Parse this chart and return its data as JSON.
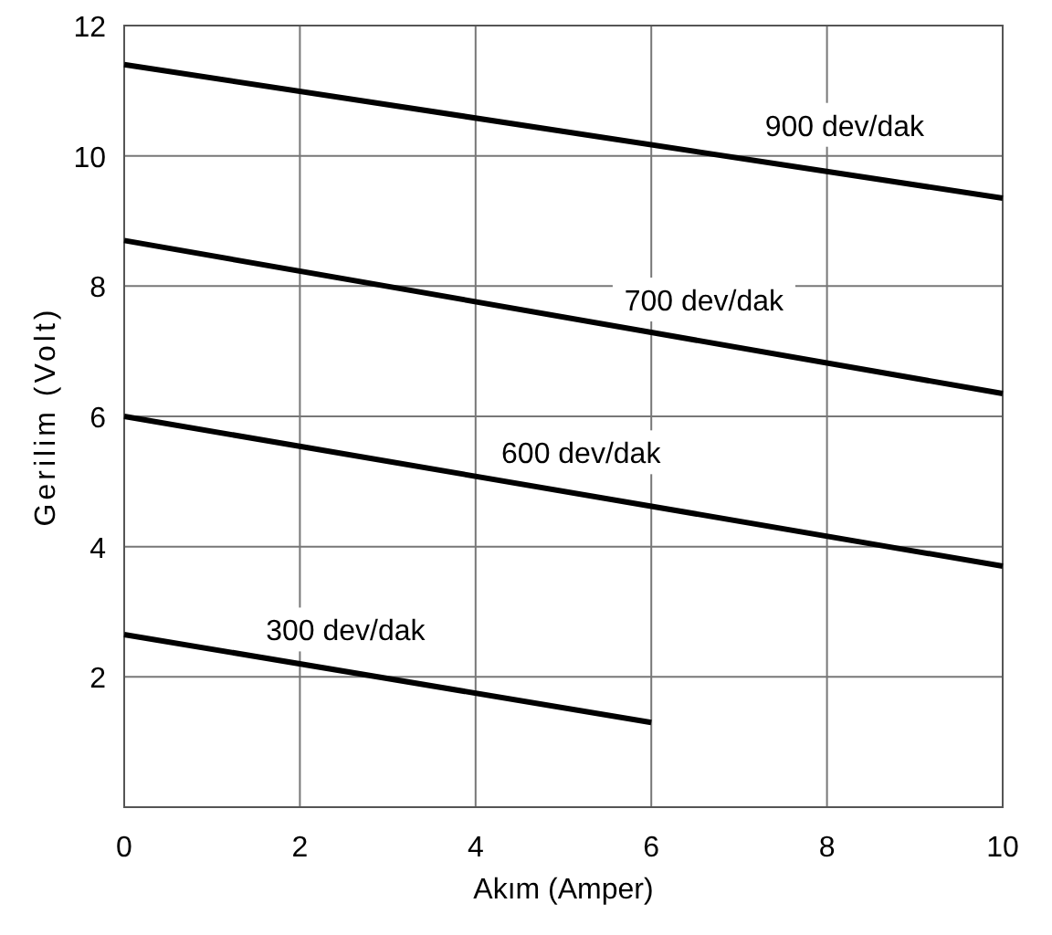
{
  "chart_data": {
    "type": "line",
    "xlabel": "Akım (Amper)",
    "ylabel": "Gerilim (Volt)",
    "x": [
      0,
      10
    ],
    "series": [
      {
        "name": "900 dev/dak",
        "color": "#000000",
        "values": [
          11.4,
          9.35
        ]
      },
      {
        "name": "700 dev/dak",
        "color": "#000000",
        "values": [
          8.7,
          6.35
        ]
      },
      {
        "name": "600 dev/dak",
        "color": "#000000",
        "values": [
          6.0,
          3.7
        ]
      },
      {
        "name": "300 dev/dak",
        "color": "#000000",
        "x": [
          0,
          6
        ],
        "values": [
          2.65,
          1.3
        ]
      }
    ],
    "xlim": [
      0,
      10
    ],
    "xticks": [
      0,
      2,
      4,
      6,
      8,
      10
    ],
    "ylim": [
      0,
      12
    ],
    "yticks": [
      2,
      4,
      6,
      8,
      10,
      12
    ],
    "grid": true,
    "marker": "none",
    "line_style": "solid"
  }
}
